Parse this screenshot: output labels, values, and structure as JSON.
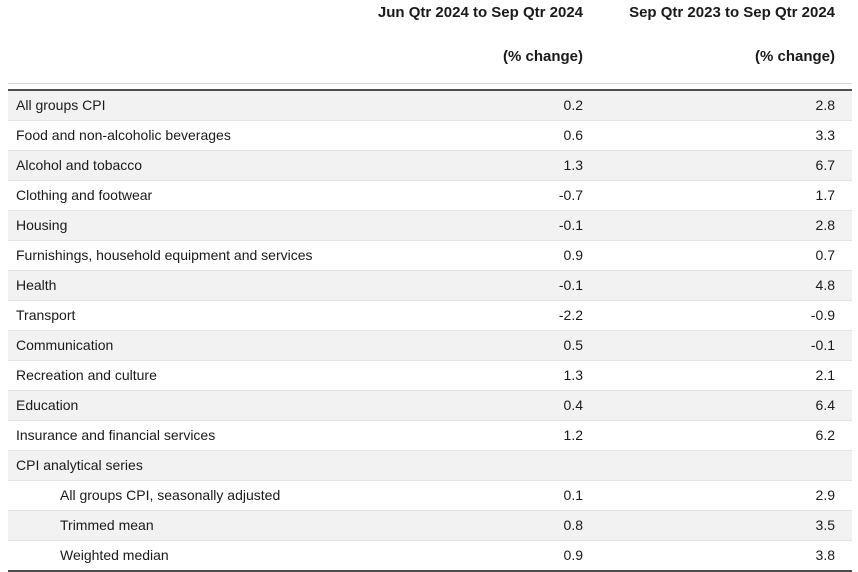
{
  "colors": {
    "row_alt_background": "#f2f2f2",
    "border_dark": "#4d4d4d",
    "border_light": "#e3e3e3",
    "text": "#1a1a1a"
  },
  "chart_data": {
    "type": "table",
    "title": "",
    "columns": [
      {
        "label": "Jun Qtr 2024 to Sep Qtr 2024",
        "unit": "(% change)"
      },
      {
        "label": "Sep Qtr 2023 to Sep Qtr 2024",
        "unit": "(% change)"
      }
    ],
    "rows": [
      {
        "label": "All groups CPI",
        "qtr_change": "0.2",
        "annual_change": "2.8"
      },
      {
        "label": "Food and non-alcoholic beverages",
        "qtr_change": "0.6",
        "annual_change": "3.3"
      },
      {
        "label": "Alcohol and tobacco",
        "qtr_change": "1.3",
        "annual_change": "6.7"
      },
      {
        "label": "Clothing and footwear",
        "qtr_change": "-0.7",
        "annual_change": "1.7"
      },
      {
        "label": "Housing",
        "qtr_change": "-0.1",
        "annual_change": "2.8"
      },
      {
        "label": "Furnishings, household equipment and services",
        "qtr_change": "0.9",
        "annual_change": "0.7"
      },
      {
        "label": "Health",
        "qtr_change": "-0.1",
        "annual_change": "4.8"
      },
      {
        "label": "Transport",
        "qtr_change": "-2.2",
        "annual_change": "-0.9"
      },
      {
        "label": "Communication",
        "qtr_change": "0.5",
        "annual_change": "-0.1"
      },
      {
        "label": "Recreation and culture",
        "qtr_change": "1.3",
        "annual_change": "2.1"
      },
      {
        "label": "Education",
        "qtr_change": "0.4",
        "annual_change": "6.4"
      },
      {
        "label": "Insurance and financial services",
        "qtr_change": "1.2",
        "annual_change": "6.2"
      },
      {
        "label": "CPI analytical series",
        "qtr_change": "",
        "annual_change": ""
      },
      {
        "label": "All groups CPI, seasonally adjusted",
        "qtr_change": "0.1",
        "annual_change": "2.9",
        "indent": true
      },
      {
        "label": "Trimmed mean",
        "qtr_change": "0.8",
        "annual_change": "3.5",
        "indent": true
      },
      {
        "label": "Weighted median",
        "qtr_change": "0.9",
        "annual_change": "3.8",
        "indent": true
      }
    ]
  }
}
